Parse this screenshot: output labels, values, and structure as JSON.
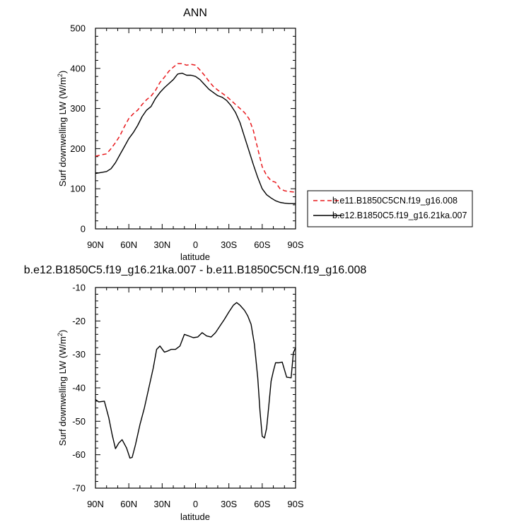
{
  "chart_data": [
    {
      "type": "line",
      "title": "ANN",
      "xlabel": "latitude",
      "ylabel": "Surf downwelling LW (W/m",
      "ylabel_sup": "2",
      "ylabel_end": ")",
      "xticks": [
        "90N",
        "60N",
        "30N",
        "0",
        "30S",
        "60S",
        "90S"
      ],
      "yticks": [
        "0",
        "100",
        "200",
        "300",
        "400",
        "500"
      ],
      "xlim": [
        90,
        -90
      ],
      "ylim": [
        0,
        500
      ],
      "legend_position": "right",
      "series": [
        {
          "name": "b.e11.B1850C5CN.f19_g16.008",
          "color": "#e8181c",
          "dash": "dashed",
          "x": [
            90,
            84,
            80,
            76,
            72,
            68,
            64,
            60,
            56,
            52,
            48,
            44,
            40,
            36,
            32,
            28,
            24,
            20,
            16,
            12,
            8,
            4,
            0,
            -4,
            -8,
            -12,
            -16,
            -20,
            -24,
            -28,
            -32,
            -36,
            -40,
            -44,
            -48,
            -52,
            -56,
            -60,
            -64,
            -68,
            -72,
            -76,
            -80,
            -84,
            -88,
            -90
          ],
          "y": [
            181,
            185,
            187,
            200,
            215,
            232,
            255,
            275,
            287,
            296,
            310,
            322,
            331,
            345,
            365,
            378,
            393,
            403,
            412,
            412,
            408,
            410,
            408,
            396,
            383,
            368,
            355,
            346,
            338,
            330,
            320,
            310,
            300,
            290,
            275,
            245,
            200,
            155,
            133,
            120,
            116,
            100,
            95,
            93,
            92,
            92
          ]
        },
        {
          "name": "b.e12.B1850C5.f19_g16.21ka.007",
          "color": "#000000",
          "dash": "solid",
          "x": [
            90,
            84,
            80,
            76,
            72,
            68,
            64,
            60,
            56,
            52,
            48,
            44,
            40,
            36,
            32,
            28,
            24,
            20,
            16,
            12,
            8,
            4,
            0,
            -4,
            -8,
            -12,
            -16,
            -20,
            -24,
            -28,
            -32,
            -36,
            -40,
            -44,
            -48,
            -52,
            -56,
            -60,
            -64,
            -68,
            -72,
            -76,
            -80,
            -84,
            -88,
            -90
          ],
          "y": [
            138,
            141,
            143,
            150,
            165,
            185,
            205,
            225,
            240,
            258,
            280,
            296,
            305,
            325,
            340,
            352,
            362,
            372,
            386,
            388,
            383,
            383,
            380,
            372,
            360,
            348,
            340,
            332,
            328,
            320,
            307,
            290,
            265,
            230,
            195,
            160,
            128,
            100,
            85,
            77,
            70,
            66,
            64,
            63,
            63,
            63
          ]
        }
      ]
    },
    {
      "type": "line",
      "title": "b.e12.B1850C5.f19_g16.21ka.007 - b.e11.B1850C5CN.f19_g16.008",
      "xlabel": "latitude",
      "ylabel": "Surf downwelling LW (W/m",
      "ylabel_sup": "2",
      "ylabel_end": ")",
      "xticks": [
        "90N",
        "60N",
        "30N",
        "0",
        "30S",
        "60S",
        "90S"
      ],
      "yticks": [
        "-70",
        "-60",
        "-50",
        "-40",
        "-30",
        "-20",
        "-10"
      ],
      "xlim": [
        90,
        -90
      ],
      "ylim": [
        -70,
        -10
      ],
      "series": [
        {
          "name": "",
          "color": "#000000",
          "dash": "solid",
          "x": [
            90,
            87,
            82,
            78,
            75,
            72,
            69,
            66,
            62,
            59,
            57,
            54,
            50,
            46,
            42,
            38,
            35,
            32,
            28,
            25,
            22,
            18,
            14,
            10,
            6,
            2,
            -2,
            -6,
            -10,
            -14,
            -18,
            -22,
            -26,
            -30,
            -34,
            -37,
            -40,
            -44,
            -47,
            -50,
            -53,
            -56,
            -58,
            -60,
            -62,
            -64,
            -66,
            -68,
            -70,
            -72,
            -75,
            -78,
            -82,
            -86,
            -88,
            -90
          ],
          "y": [
            -43.5,
            -44.2,
            -44,
            -49,
            -54,
            -58.2,
            -56.5,
            -55.5,
            -58,
            -61,
            -60.8,
            -57,
            -51,
            -46,
            -40,
            -34,
            -28.5,
            -27.5,
            -29.3,
            -29,
            -28.5,
            -28.5,
            -27.5,
            -24,
            -24.5,
            -25,
            -24.8,
            -23.5,
            -24.5,
            -24.8,
            -23.5,
            -21.5,
            -19.5,
            -17.3,
            -15.3,
            -14.5,
            -15.3,
            -16.8,
            -18.5,
            -21,
            -27,
            -37,
            -47,
            -54.5,
            -55,
            -52,
            -45,
            -38,
            -35,
            -32.5,
            -32.5,
            -32.3,
            -36.8,
            -37,
            -29.5,
            -28
          ]
        }
      ]
    }
  ]
}
